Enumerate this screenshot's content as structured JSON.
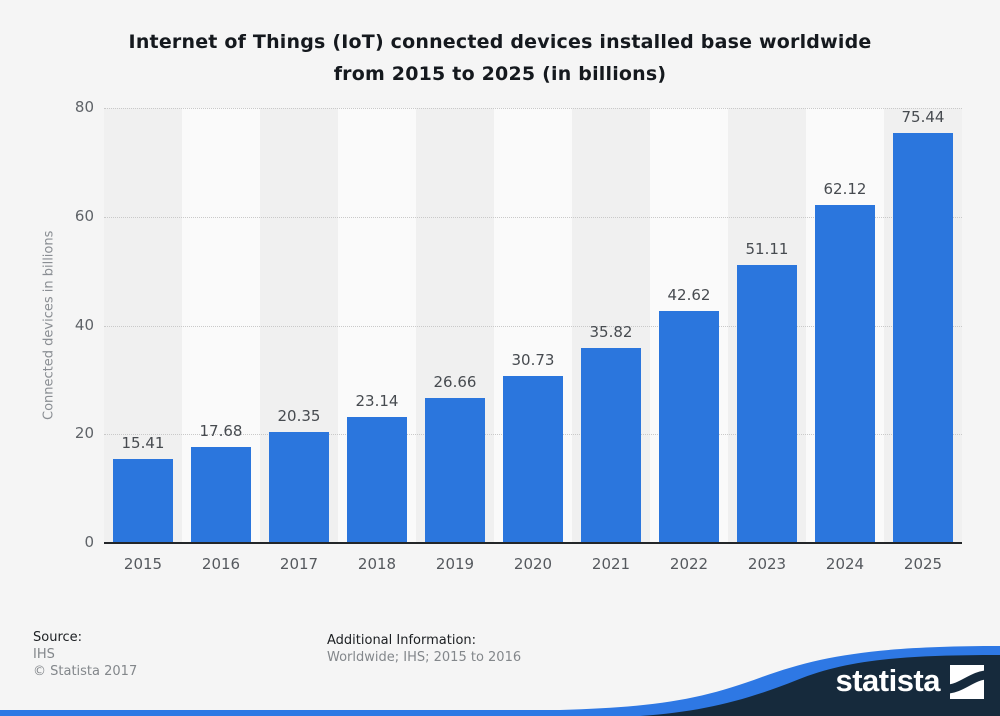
{
  "title_lines": [
    "Internet of Things (IoT) connected devices installed base worldwide",
    "from 2015 to 2025 (in billions)"
  ],
  "chart_data": {
    "type": "bar",
    "title": "Internet of Things (IoT) connected devices installed base worldwide from 2015 to 2025 (in billions)",
    "categories": [
      "2015",
      "2016",
      "2017",
      "2018",
      "2019",
      "2020",
      "2021",
      "2022",
      "2023",
      "2024",
      "2025"
    ],
    "values": [
      15.41,
      17.68,
      20.35,
      23.14,
      26.66,
      30.73,
      35.82,
      42.62,
      51.11,
      62.12,
      75.44
    ],
    "value_labels": [
      "15.41",
      "17.68",
      "20.35",
      "23.14",
      "26.66",
      "30.73",
      "35.82",
      "42.62",
      "51.11",
      "62.12",
      "75.44"
    ],
    "xlabel": "",
    "ylabel": "Connected devices in billions",
    "ylim": [
      0,
      80
    ],
    "yticks": [
      0,
      20,
      40,
      60,
      80
    ],
    "ytick_labels": [
      "0",
      "20",
      "40",
      "60",
      "80"
    ],
    "grid": "horizontal-dotted",
    "legend": "none",
    "bar_color": "#2b76dd",
    "band_colors": [
      "#f0f0f0",
      "#fafafa"
    ],
    "axis_line_color": "#232629"
  },
  "footer": {
    "source_label": "Source:",
    "source_value": "IHS",
    "copyright": "© Statista 2017",
    "additional_label": "Additional Information:",
    "additional_value": "Worldwide; IHS; 2015 to 2016"
  },
  "branding": {
    "logo_text": "statista",
    "logo_mark": "statista-wave-icon",
    "navy_color": "#162a3c",
    "blue_color": "#2e78e4"
  }
}
